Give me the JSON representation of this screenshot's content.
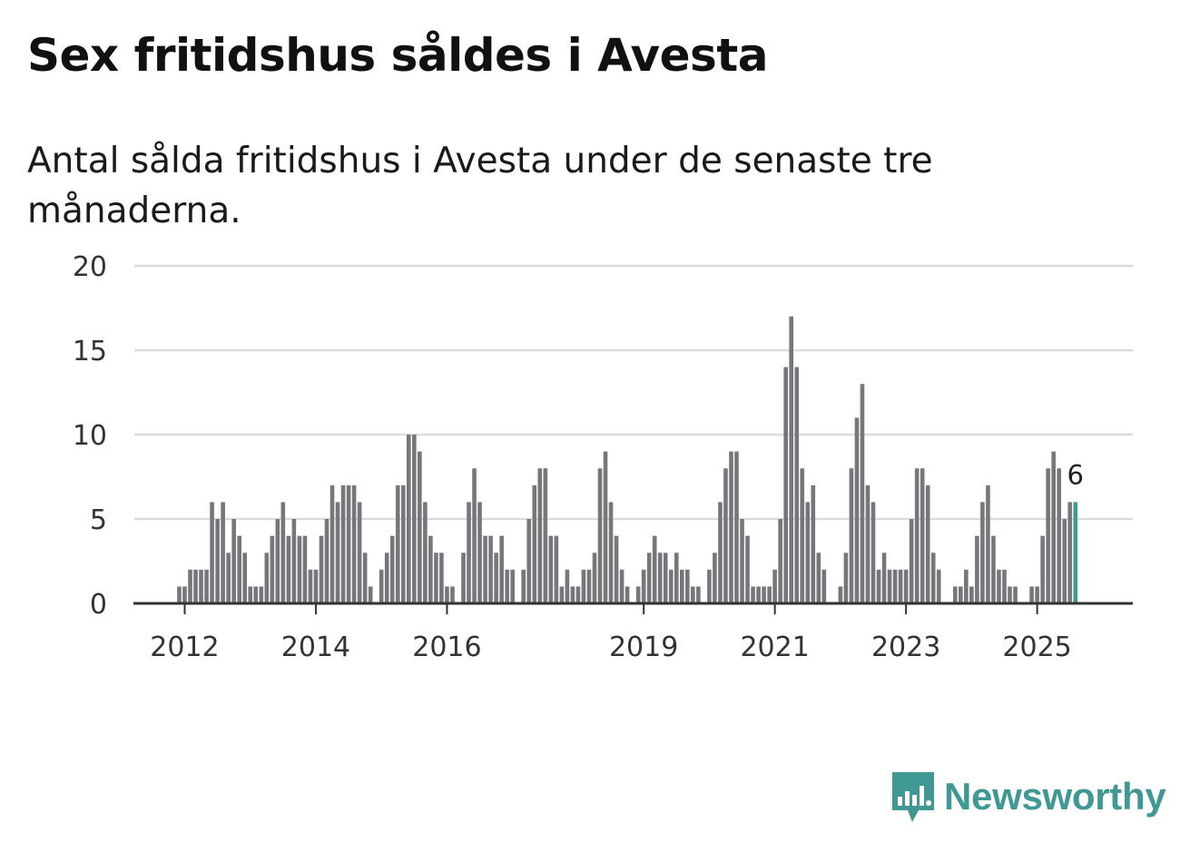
{
  "title": "Sex fritidshus såldes i Avesta",
  "subtitle": "Antal sålda fritidshus i Avesta under de senaste tre månaderna.",
  "brand": {
    "name": "Newsworthy",
    "icon": "newsworthy-logo-icon",
    "color": "#3f9893"
  },
  "chart_data": {
    "type": "bar",
    "title": "Sex fritidshus såldes i Avesta",
    "xlabel": "",
    "ylabel": "",
    "ylim": [
      0,
      20
    ],
    "yticks": [
      0,
      5,
      10,
      15,
      20
    ],
    "grid": true,
    "bar_color": "#77767b",
    "highlight_color": "#3f9893",
    "start": {
      "year": 2011,
      "month": 4
    },
    "xticks": [
      {
        "label": "2012",
        "index": 9
      },
      {
        "label": "2014",
        "index": 33
      },
      {
        "label": "2016",
        "index": 57
      },
      {
        "label": "2019",
        "index": 93
      },
      {
        "label": "2021",
        "index": 117
      },
      {
        "label": "2023",
        "index": 141
      },
      {
        "label": "2025",
        "index": 165
      }
    ],
    "last_label": "6",
    "values": [
      0,
      0,
      0,
      0,
      0,
      0,
      0,
      0,
      1,
      1,
      2,
      2,
      2,
      2,
      6,
      5,
      6,
      3,
      5,
      4,
      3,
      1,
      1,
      1,
      3,
      4,
      5,
      6,
      4,
      5,
      4,
      4,
      2,
      2,
      4,
      5,
      7,
      6,
      7,
      7,
      7,
      6,
      3,
      1,
      0,
      2,
      3,
      4,
      7,
      7,
      10,
      10,
      9,
      6,
      4,
      3,
      3,
      1,
      1,
      0,
      3,
      6,
      8,
      6,
      4,
      4,
      3,
      4,
      2,
      2,
      0,
      2,
      5,
      7,
      8,
      8,
      4,
      4,
      1,
      2,
      1,
      1,
      2,
      2,
      3,
      8,
      9,
      6,
      4,
      2,
      1,
      0,
      1,
      2,
      3,
      4,
      3,
      3,
      2,
      3,
      2,
      2,
      1,
      1,
      0,
      2,
      3,
      6,
      8,
      9,
      9,
      5,
      4,
      1,
      1,
      1,
      1,
      2,
      5,
      14,
      17,
      14,
      8,
      6,
      7,
      3,
      2,
      0,
      0,
      1,
      3,
      8,
      11,
      13,
      7,
      6,
      2,
      3,
      2,
      2,
      2,
      2,
      5,
      8,
      8,
      7,
      3,
      2,
      0,
      0,
      1,
      1,
      2,
      1,
      4,
      6,
      7,
      4,
      2,
      2,
      1,
      1,
      0,
      0,
      1,
      1,
      4,
      8,
      9,
      8,
      5,
      6,
      6
    ]
  }
}
